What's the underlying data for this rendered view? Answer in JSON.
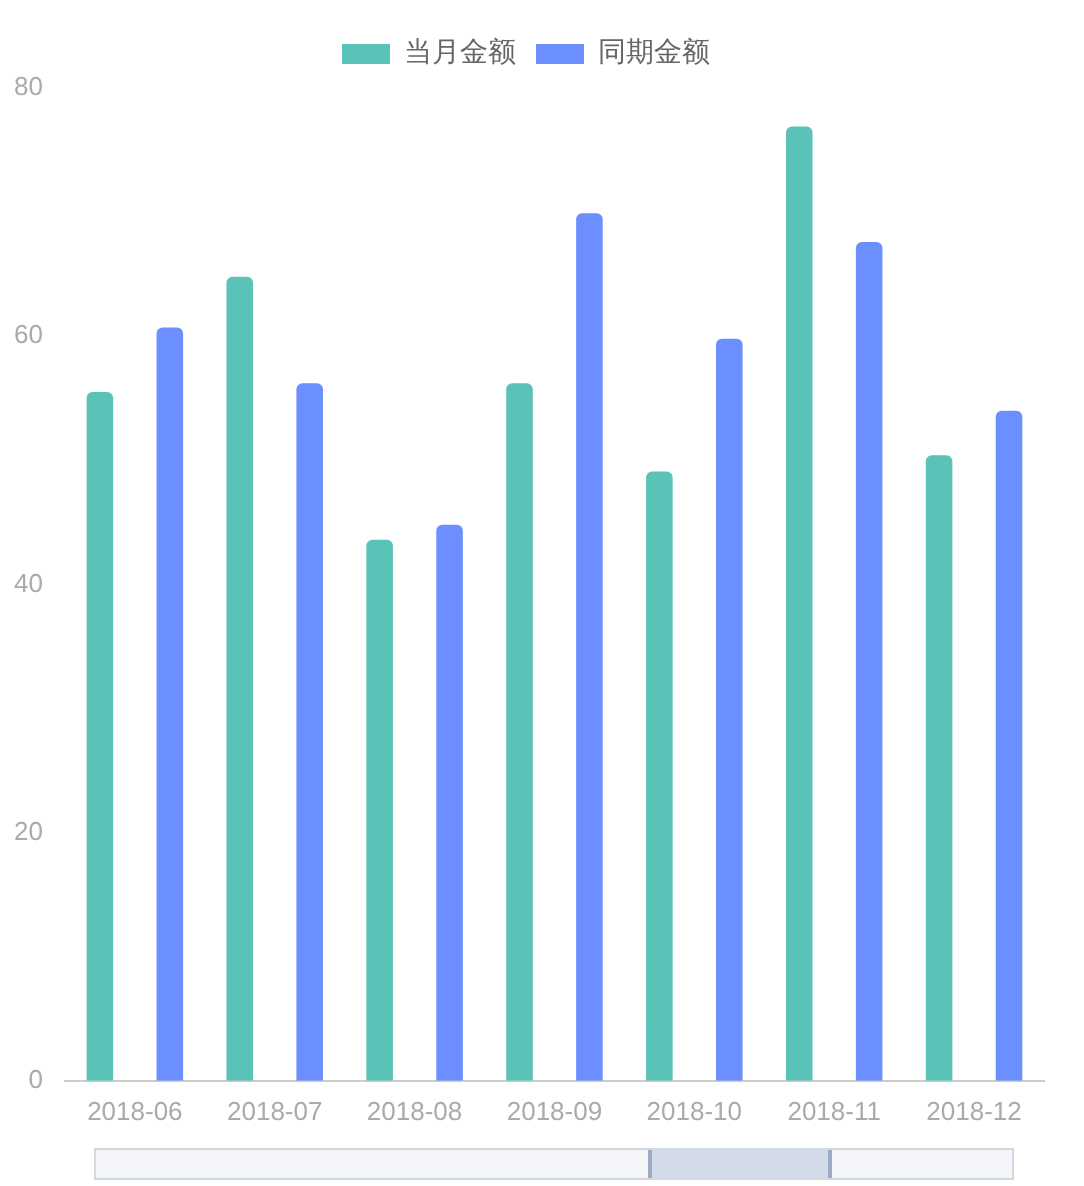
{
  "chart_data": {
    "type": "bar",
    "categories": [
      "2018-06",
      "2018-07",
      "2018-08",
      "2018-09",
      "2018-10",
      "2018-11",
      "2018-12"
    ],
    "series": [
      {
        "name": "当月金额",
        "color": "#5bc2b8",
        "values": [
          55.5,
          64.8,
          43.6,
          56.2,
          49.1,
          76.9,
          50.4
        ]
      },
      {
        "name": "同期金额",
        "color": "#6b8ffe",
        "values": [
          60.7,
          56.2,
          44.8,
          69.9,
          59.8,
          67.6,
          54.0
        ]
      }
    ],
    "ylim": [
      0,
      80
    ],
    "yticks": [
      0,
      20,
      40,
      60,
      80
    ],
    "grid": false,
    "legend": "top"
  }
}
